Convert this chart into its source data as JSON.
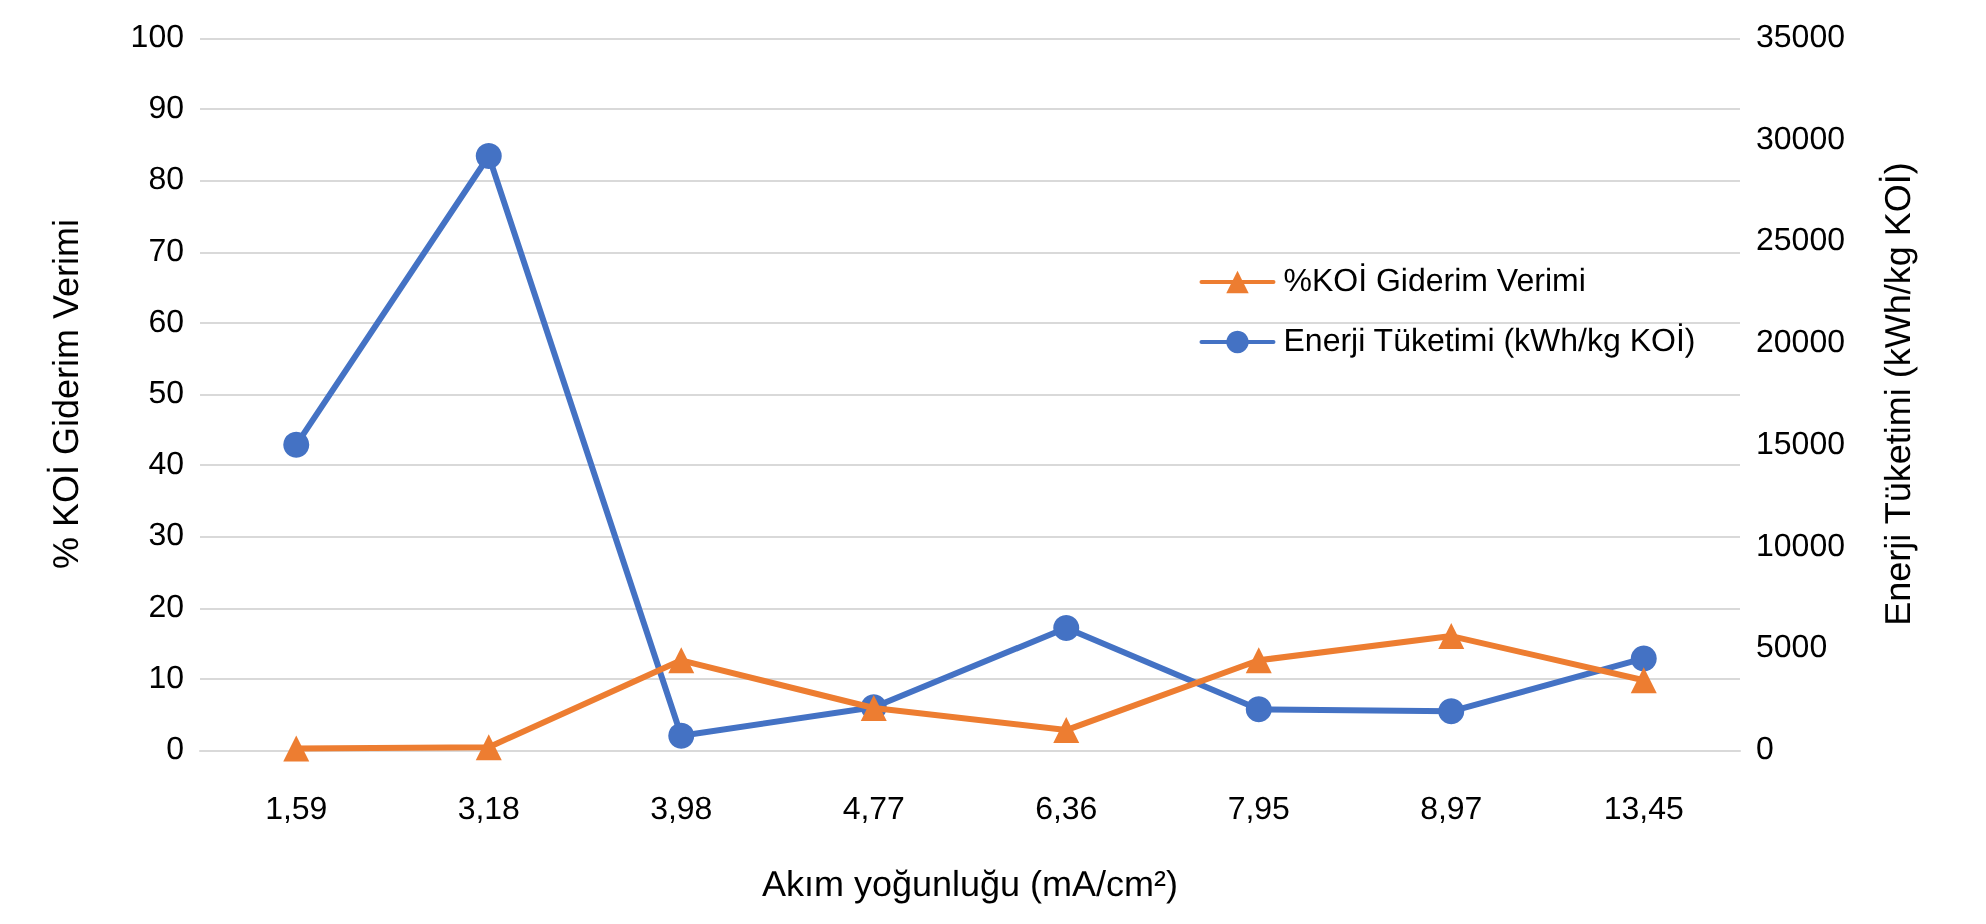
{
  "chart_data": {
    "type": "line",
    "xlabel": "Akım yoğunluğu (mA/cm²)",
    "ylabel": "% KOİ Giderim Verimi",
    "y2label": "Enerji Tüketimi (kWh/kg KOİ)",
    "categories": [
      "1,59",
      "3,18",
      "3,98",
      "4,77",
      "6,36",
      "7,95",
      "8,97",
      "13,45"
    ],
    "series": [
      {
        "name": "%KOİ Giderim Verimi",
        "color": "#ed7d31",
        "marker": "triangle",
        "values": [
          0.2,
          0.4,
          12.6,
          5.9,
          2.8,
          12.6,
          16,
          9.8
        ]
      },
      {
        "name": "Enerji Tüketimi (kWh/kg KOİ)",
        "color": "#4472c4",
        "marker": "circle",
        "axis": "y2",
        "values": [
          15000,
          29200,
          700,
          2100,
          6000,
          2000,
          1900,
          4500
        ]
      }
    ],
    "ylim": [
      0,
      100
    ],
    "yticks": [
      0,
      10,
      20,
      30,
      40,
      50,
      60,
      70,
      80,
      90,
      100
    ],
    "y2lim": [
      0,
      35000
    ],
    "y2ticks": [
      0,
      5000,
      10000,
      15000,
      20000,
      25000,
      30000,
      35000
    ],
    "grid": "y",
    "legend": "right",
    "line_style": "solid"
  }
}
